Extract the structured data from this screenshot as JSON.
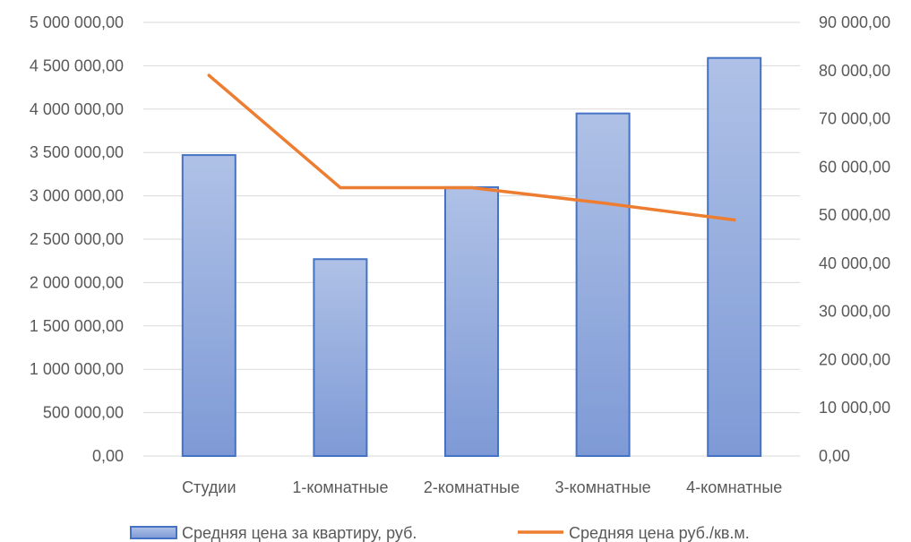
{
  "chart_data": {
    "type": "bar",
    "title": "",
    "categories": [
      "Студии",
      "1-комнатные",
      "2-комнатные",
      "3-комнатные",
      "4-комнатные"
    ],
    "series": [
      {
        "name": "Средняя цена за квартиру, руб.",
        "type": "bar",
        "axis": "left",
        "color": "#8FAADC",
        "values": [
          3470000,
          2270000,
          3100000,
          3950000,
          4590000
        ]
      },
      {
        "name": "Средняя цена руб./кв.м.",
        "type": "line",
        "axis": "right",
        "color": "#ED7D31",
        "values": [
          79000,
          55700,
          55700,
          52500,
          49000
        ]
      }
    ],
    "y_left": {
      "ylim": [
        0,
        5000000
      ],
      "ticks": [
        "0,00",
        "500 000,00",
        "1 000 000,00",
        "1 500 000,00",
        "2 000 000,00",
        "2 500 000,00",
        "3 000 000,00",
        "3 500 000,00",
        "4 000 000,00",
        "4 500 000,00",
        "5 000 000,00"
      ]
    },
    "y_right": {
      "ylim": [
        0,
        90000
      ],
      "ticks": [
        "0,00",
        "10 000,00",
        "20 000,00",
        "30 000,00",
        "40 000,00",
        "50 000,00",
        "60 000,00",
        "70 000,00",
        "80 000,00",
        "90 000,00"
      ]
    },
    "grid": true,
    "legend": "bottom"
  }
}
